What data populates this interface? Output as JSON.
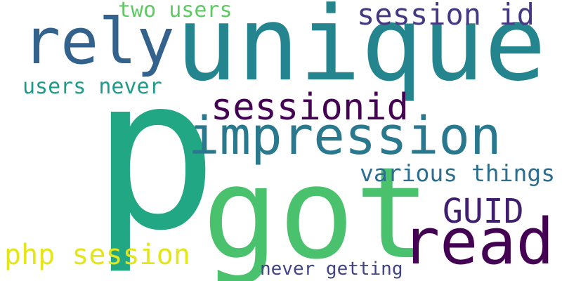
{
  "words": [
    {
      "key": "p",
      "text": "p",
      "color": "#22a784"
    },
    {
      "key": "unique",
      "text": "unique",
      "color": "#25858e"
    },
    {
      "key": "impression",
      "text": "impression",
      "color": "#2a788e"
    },
    {
      "key": "got",
      "text": "got",
      "color": "#4ac16d"
    },
    {
      "key": "read",
      "text": "read",
      "color": "#440154"
    },
    {
      "key": "rely",
      "text": "rely",
      "color": "#33638d"
    },
    {
      "key": "sessionid",
      "text": "sessionid",
      "color": "#440154"
    },
    {
      "key": "session_id",
      "text": "session id",
      "color": "#453781"
    },
    {
      "key": "guid",
      "text": "GUID",
      "color": "#3f1f6e"
    },
    {
      "key": "various_things",
      "text": "various things",
      "color": "#2d6e8e"
    },
    {
      "key": "users_never",
      "text": "users never",
      "color": "#1f9a8a"
    },
    {
      "key": "two_users",
      "text": "two users",
      "color": "#5ec962"
    },
    {
      "key": "php_session",
      "text": "php session",
      "color": "#e4e51a"
    },
    {
      "key": "never_getting",
      "text": "never getting",
      "color": "#414487"
    }
  ]
}
